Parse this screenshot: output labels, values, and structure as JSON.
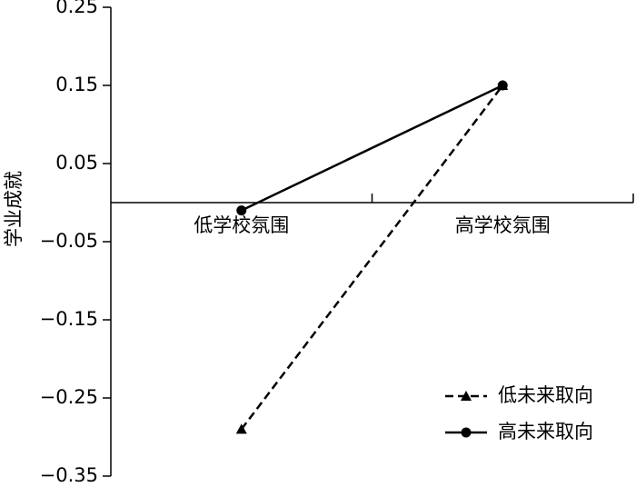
{
  "chart_data": {
    "type": "line",
    "y_label": "学业成就",
    "categories": [
      "低学校氛围",
      "高学校氛围"
    ],
    "series": [
      {
        "name": "低未来取向",
        "color": "#000000",
        "dash": true,
        "marker": "triangle",
        "values": [
          -0.29,
          0.15
        ]
      },
      {
        "name": "高未来取向",
        "color": "#000000",
        "dash": false,
        "marker": "circle",
        "values": [
          -0.01,
          0.15
        ]
      }
    ],
    "ylim": [
      -0.35,
      0.25
    ],
    "yticks": [
      0.25,
      0.15,
      0.05,
      {
        "value": -0.05,
        "label": "−0.05"
      },
      {
        "value": -0.15,
        "label": "−0.15"
      },
      {
        "value": -0.25,
        "label": "−0.25"
      },
      {
        "value": -0.35,
        "label": "−0.35"
      }
    ],
    "legend": "lower-right"
  }
}
